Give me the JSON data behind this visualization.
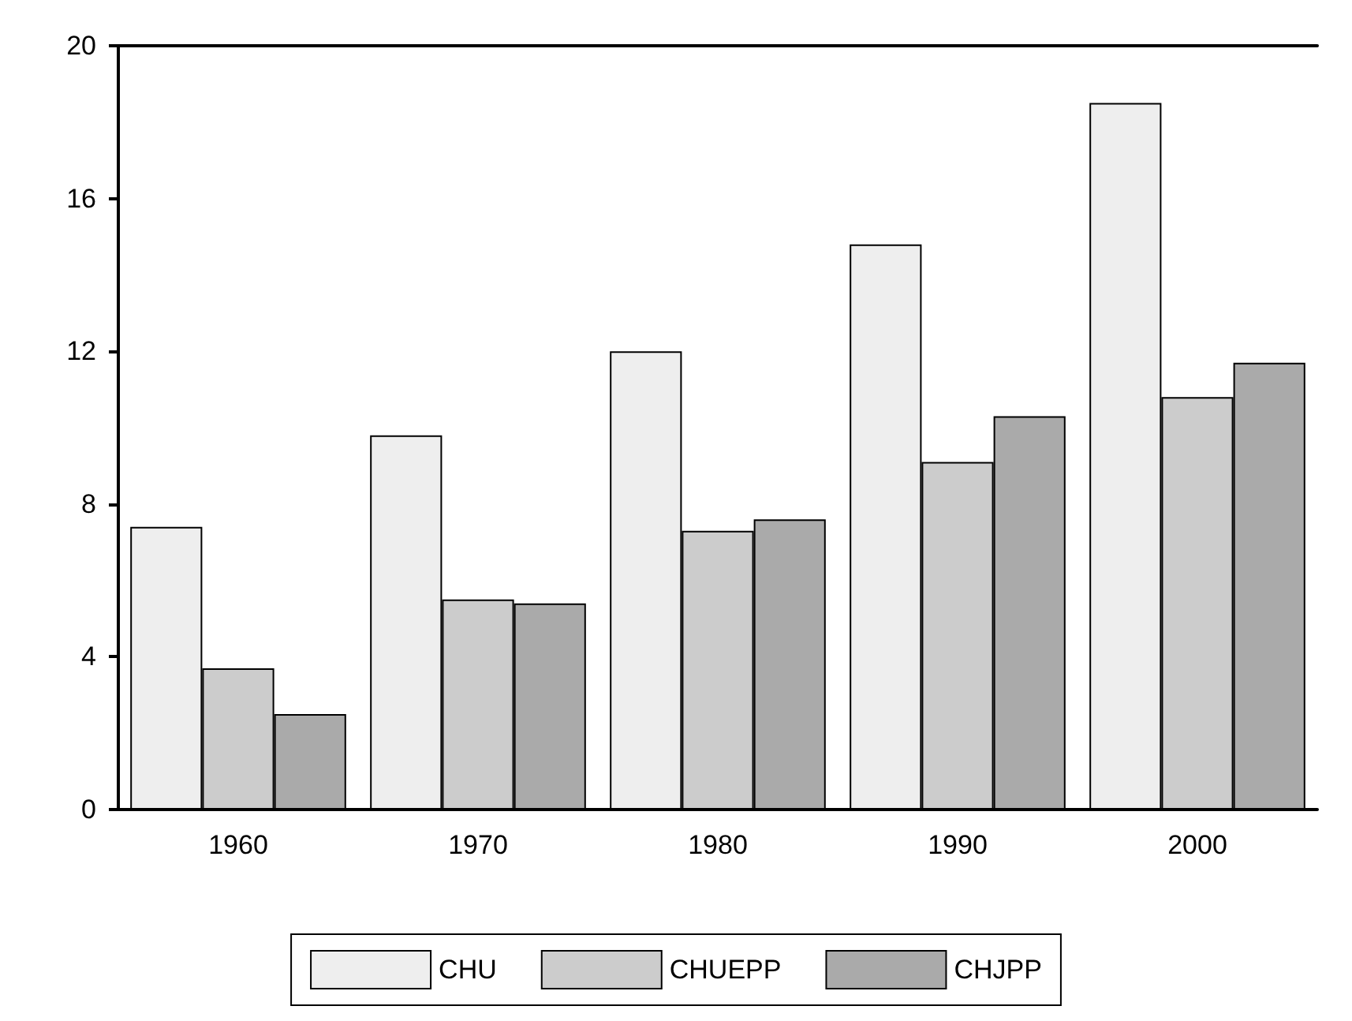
{
  "chart_data": {
    "type": "bar",
    "categories": [
      "1960",
      "1970",
      "1980",
      "1990",
      "2000"
    ],
    "series": [
      {
        "name": "CHU",
        "color": "#eeeeee",
        "values": [
          7.4,
          9.8,
          12.0,
          14.8,
          18.5
        ]
      },
      {
        "name": "CHUEPP",
        "color": "#cccccc",
        "values": [
          3.7,
          5.5,
          7.3,
          9.1,
          10.8
        ]
      },
      {
        "name": "CHJPP",
        "color": "#aaaaaa",
        "values": [
          2.5,
          5.4,
          7.6,
          10.3,
          11.7
        ]
      }
    ],
    "ylim": [
      0,
      20
    ],
    "yticks": [
      0,
      4,
      8,
      12,
      16,
      20
    ],
    "grid": false,
    "legend": "bottom"
  }
}
